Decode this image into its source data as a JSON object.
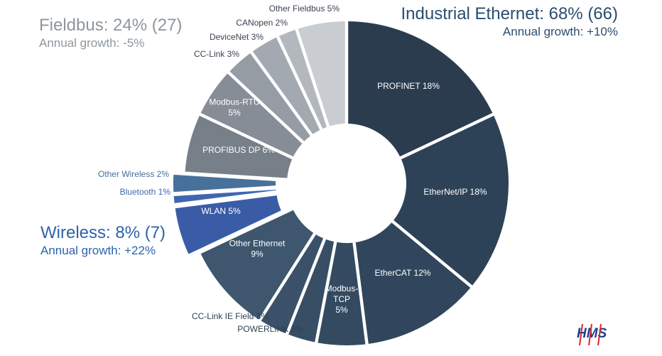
{
  "groups": {
    "fieldbus": {
      "title": "Fieldbus: 24% (27)",
      "growth": "Annual growth: -5%",
      "color": "#8e969d"
    },
    "ethernet": {
      "title": "Industrial Ethernet: 68% (66)",
      "growth": "Annual growth: +10%",
      "color": "#2a4d6e"
    },
    "wireless": {
      "title": "Wireless: 8% (7)",
      "growth": "Annual growth: +22%",
      "color": "#2e62ad"
    }
  },
  "logo": {
    "text": "HMS"
  },
  "chart_data": {
    "type": "pie",
    "title": "",
    "slices": [
      {
        "name": "PROFINET",
        "value": 18,
        "group": "ethernet",
        "color": "#2b3c4f",
        "label": [
          "PROFINET 18%"
        ]
      },
      {
        "name": "EtherNet/IP",
        "value": 18,
        "group": "ethernet",
        "color": "#2e4257",
        "label": [
          "EtherNet/IP 18%"
        ]
      },
      {
        "name": "EtherCAT",
        "value": 12,
        "group": "ethernet",
        "color": "#31465c",
        "label": [
          "EtherCAT 12%"
        ]
      },
      {
        "name": "Modbus-TCP",
        "value": 5,
        "group": "ethernet",
        "color": "#344a61",
        "label": [
          "Modbus-",
          "TCP",
          "5%"
        ]
      },
      {
        "name": "POWERLINK",
        "value": 3,
        "group": "ethernet",
        "color": "#374e65",
        "label": [
          "POWERLINK 3%"
        ]
      },
      {
        "name": "CC-Link IE Field",
        "value": 3,
        "group": "ethernet",
        "color": "#3a5169",
        "label": [
          "CC-Link IE Field 3%"
        ]
      },
      {
        "name": "Other Ethernet",
        "value": 9,
        "group": "ethernet",
        "color": "#3e566e",
        "label": [
          "Other Ethernet",
          "9%"
        ]
      },
      {
        "name": "WLAN",
        "value": 5,
        "group": "wireless",
        "color": "#3a5ca7",
        "label": [
          "WLAN 5%"
        ]
      },
      {
        "name": "Bluetooth",
        "value": 1,
        "group": "wireless",
        "color": "#3f67af",
        "label": [
          "Bluetooth 1%"
        ]
      },
      {
        "name": "Other Wireless",
        "value": 2,
        "group": "wireless",
        "color": "#47719b",
        "label": [
          "Other Wireless 2%"
        ]
      },
      {
        "name": "PROFIBUS DP",
        "value": 6,
        "group": "fieldbus",
        "color": "#777f88",
        "label": [
          "PROFIBUS DP 6%"
        ]
      },
      {
        "name": "Modbus-RTU",
        "value": 5,
        "group": "fieldbus",
        "color": "#868d96",
        "label": [
          "Modbus-RTU",
          "5%"
        ]
      },
      {
        "name": "CC-Link",
        "value": 3,
        "group": "fieldbus",
        "color": "#969ca4",
        "label": [
          "CC-Link 3%"
        ]
      },
      {
        "name": "DeviceNet",
        "value": 3,
        "group": "fieldbus",
        "color": "#a3a9b0",
        "label": [
          "DeviceNet 3%"
        ]
      },
      {
        "name": "CANopen",
        "value": 2,
        "group": "fieldbus",
        "color": "#b3b8be",
        "label": [
          "CANopen 2%"
        ]
      },
      {
        "name": "Other Fieldbus",
        "value": 5,
        "group": "fieldbus",
        "color": "#c9cdd2",
        "label": [
          "Other Fieldbus 5%"
        ]
      }
    ]
  }
}
